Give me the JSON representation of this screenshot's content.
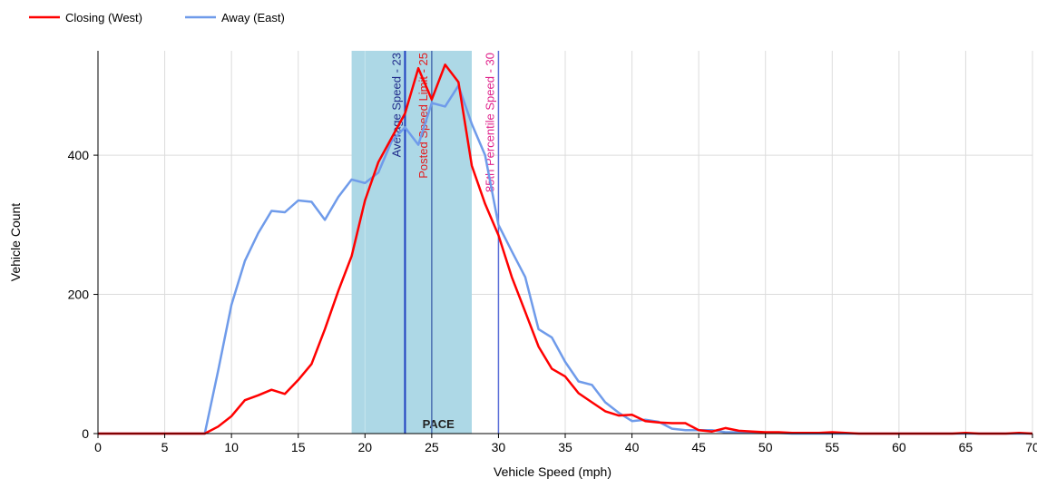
{
  "chart_data": {
    "type": "line",
    "xlabel": "Vehicle Speed (mph)",
    "ylabel": "Vehicle Count",
    "xlim": [
      0,
      70
    ],
    "ylim": [
      0,
      550
    ],
    "x_ticks": [
      0,
      5,
      10,
      15,
      20,
      25,
      30,
      35,
      40,
      45,
      50,
      55,
      60,
      65,
      70
    ],
    "y_ticks": [
      0,
      200,
      400
    ],
    "grid": true,
    "legend_position": "top-left",
    "pace_band": {
      "label": "PACE",
      "from": 19,
      "to": 28,
      "color": "#add8e6"
    },
    "reference_lines": [
      {
        "label": "Average Speed - 23",
        "x": 23,
        "color": "#1f3fc0",
        "text_color": "#1f2a8a"
      },
      {
        "label": "Posted Speed Limit - 25",
        "x": 25,
        "color": "#4a6fb0",
        "text_color": "#e31a1c"
      },
      {
        "label": "85th Percentile Speed - 30",
        "x": 30,
        "color": "#5b6fd8",
        "text_color": "#e0208a"
      }
    ],
    "x": [
      0,
      1,
      2,
      3,
      4,
      5,
      6,
      7,
      8,
      9,
      10,
      11,
      12,
      13,
      14,
      15,
      16,
      17,
      18,
      19,
      20,
      21,
      22,
      23,
      24,
      25,
      26,
      27,
      28,
      29,
      30,
      31,
      32,
      33,
      34,
      35,
      36,
      37,
      38,
      39,
      40,
      41,
      42,
      43,
      44,
      45,
      46,
      47,
      48,
      49,
      50,
      51,
      52,
      53,
      54,
      55,
      56,
      57,
      58,
      59,
      60,
      61,
      62,
      63,
      64,
      65,
      66,
      67,
      68,
      69,
      70
    ],
    "series": [
      {
        "name": "Closing (West)",
        "color": "#ff0000",
        "values": [
          0,
          0,
          0,
          0,
          0,
          0,
          0,
          0,
          0,
          10,
          25,
          48,
          55,
          63,
          57,
          77,
          100,
          150,
          205,
          255,
          335,
          390,
          425,
          460,
          525,
          480,
          530,
          505,
          385,
          330,
          285,
          225,
          175,
          125,
          93,
          82,
          58,
          45,
          32,
          26,
          27,
          18,
          16,
          15,
          15,
          5,
          3,
          8,
          4,
          3,
          2,
          2,
          1,
          1,
          1,
          2,
          1,
          0,
          0,
          0,
          0,
          0,
          0,
          0,
          0,
          1,
          0,
          0,
          0,
          1,
          0
        ]
      },
      {
        "name": "Away (East)",
        "color": "#6f9bea",
        "values": [
          0,
          0,
          0,
          0,
          0,
          0,
          0,
          0,
          0,
          90,
          185,
          248,
          288,
          320,
          318,
          335,
          333,
          307,
          340,
          365,
          360,
          375,
          420,
          440,
          415,
          475,
          470,
          500,
          445,
          400,
          300,
          262,
          225,
          150,
          138,
          103,
          75,
          70,
          45,
          30,
          18,
          20,
          17,
          7,
          5,
          5,
          5,
          2,
          2,
          1,
          1,
          1,
          0,
          0,
          0,
          0,
          0,
          0,
          0,
          0,
          0,
          0,
          0,
          0,
          0,
          0,
          0,
          0,
          0,
          0,
          0
        ]
      }
    ]
  }
}
